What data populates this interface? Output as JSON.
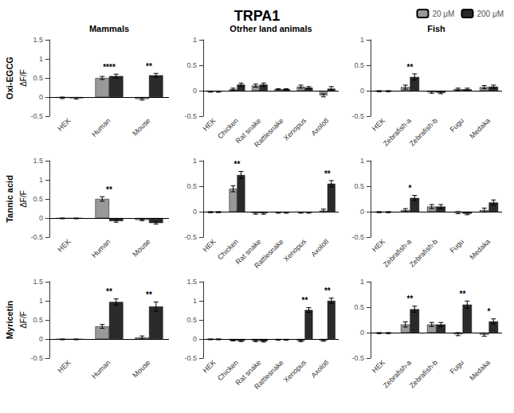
{
  "title": "TRPA1",
  "column_labels": [
    "Mammals",
    "Otrher land animals",
    "Fish"
  ],
  "row_labels": [
    "Oxi-EGCG",
    "Tannic acid",
    "Myricetin"
  ],
  "legend": "upper right",
  "chart_data": [
    {
      "type": "bar",
      "categories": [
        "HEK",
        "Human",
        "Mouse"
      ],
      "series": [
        {
          "name": "20 μM",
          "color": "#999999",
          "values": [
            -0.02,
            0.5,
            -0.05
          ],
          "errors": [
            0.02,
            0.04,
            0.03
          ]
        },
        {
          "name": "200 μM",
          "color": "#2a2a2a",
          "values": [
            -0.03,
            0.55,
            0.57
          ],
          "errors": [
            0.02,
            0.05,
            0.05
          ]
        }
      ],
      "annotations": [
        {
          "x": "Human",
          "text": "****"
        },
        {
          "x": "Mouse",
          "text": "**"
        }
      ],
      "ylabel": "ΔF/F",
      "ylim": [
        -0.5,
        1.5
      ],
      "yticks": [
        -0.5,
        0,
        0.5,
        1,
        1.5
      ],
      "grid": false
    },
    {
      "type": "bar",
      "categories": [
        "HEK",
        "Chicken",
        "Rat snake",
        "Rattlesnake",
        "Xenopus",
        "Axolotl"
      ],
      "series": [
        {
          "name": "20 μM",
          "color": "#999999",
          "values": [
            -0.02,
            0.03,
            0.1,
            0.03,
            0.08,
            -0.09
          ],
          "errors": [
            0.01,
            0.02,
            0.03,
            0.01,
            0.03,
            0.03
          ]
        },
        {
          "name": "200 μM",
          "color": "#2a2a2a",
          "values": [
            -0.02,
            0.12,
            0.12,
            0.03,
            0.06,
            0.04
          ],
          "errors": [
            0.01,
            0.03,
            0.03,
            0.01,
            0.02,
            0.04
          ]
        }
      ],
      "annotations": [],
      "ylim": [
        -0.5,
        1.0
      ],
      "yticks": [
        -0.5,
        0,
        0.5,
        1
      ],
      "grid": false
    },
    {
      "type": "bar",
      "categories": [
        "HEK",
        "Zebrafish-a",
        "Zebrafish-b",
        "Fugu",
        "Medaka"
      ],
      "series": [
        {
          "name": "20 μM",
          "color": "#999999",
          "values": [
            -0.01,
            0.07,
            -0.03,
            0.03,
            0.07
          ],
          "errors": [
            0.01,
            0.04,
            0.02,
            0.02,
            0.03
          ]
        },
        {
          "name": "200 μM",
          "color": "#2a2a2a",
          "values": [
            -0.01,
            0.27,
            -0.04,
            0.03,
            0.08
          ],
          "errors": [
            0.01,
            0.06,
            0.02,
            0.02,
            0.03
          ]
        }
      ],
      "annotations": [
        {
          "x": "Zebrafish-a",
          "text": "**"
        }
      ],
      "ylim": [
        -0.5,
        1.0
      ],
      "yticks": [
        -0.5,
        0,
        0.5,
        1
      ],
      "grid": false
    },
    {
      "type": "bar",
      "categories": [
        "HEK",
        "Human",
        "Mouse"
      ],
      "series": [
        {
          "name": "20 μM",
          "color": "#999999",
          "values": [
            -0.01,
            0.5,
            -0.05
          ],
          "errors": [
            0.01,
            0.06,
            0.02
          ]
        },
        {
          "name": "200 μM",
          "color": "#2a2a2a",
          "values": [
            -0.01,
            -0.08,
            -0.13
          ],
          "errors": [
            0.01,
            0.03,
            0.03
          ]
        }
      ],
      "annotations": [
        {
          "x": "Human",
          "text": "**"
        }
      ],
      "ylabel": "ΔF/F",
      "ylim": [
        -0.5,
        1.5
      ],
      "yticks": [
        -0.5,
        0,
        0.5,
        1,
        1.5
      ],
      "grid": false
    },
    {
      "type": "bar",
      "categories": [
        "HEK",
        "Chicken",
        "Rat snake",
        "Rattlesnake",
        "Xenopus",
        "Axolotl"
      ],
      "series": [
        {
          "name": "20 μM",
          "color": "#999999",
          "values": [
            -0.01,
            0.45,
            -0.03,
            -0.02,
            -0.02,
            0.02
          ],
          "errors": [
            0.01,
            0.06,
            0.02,
            0.01,
            0.01,
            0.03
          ]
        },
        {
          "name": "200 μM",
          "color": "#2a2a2a",
          "values": [
            -0.01,
            0.72,
            -0.03,
            -0.02,
            -0.02,
            0.55
          ],
          "errors": [
            0.01,
            0.07,
            0.02,
            0.01,
            0.01,
            0.06
          ]
        }
      ],
      "annotations": [
        {
          "x": "Chicken",
          "text": "**"
        },
        {
          "x": "Axolotl",
          "text": "**"
        }
      ],
      "ylim": [
        -0.5,
        1.0
      ],
      "yticks": [
        -0.5,
        0,
        0.5,
        1
      ],
      "grid": false
    },
    {
      "type": "bar",
      "categories": [
        "HEK",
        "Zebrafish-a",
        "Zebrafish-b",
        "Fugu",
        "Medaka"
      ],
      "series": [
        {
          "name": "20 μM",
          "color": "#999999",
          "values": [
            -0.01,
            0.03,
            0.1,
            -0.02,
            0.03
          ],
          "errors": [
            0.01,
            0.03,
            0.04,
            0.02,
            0.04
          ]
        },
        {
          "name": "200 μM",
          "color": "#2a2a2a",
          "values": [
            -0.01,
            0.27,
            0.1,
            -0.04,
            0.18
          ],
          "errors": [
            0.01,
            0.05,
            0.04,
            0.02,
            0.05
          ]
        }
      ],
      "annotations": [
        {
          "x": "Zebrafish-a",
          "text": "*"
        }
      ],
      "ylim": [
        -0.5,
        1.0
      ],
      "yticks": [
        -0.5,
        0,
        0.5,
        1
      ],
      "grid": false
    },
    {
      "type": "bar",
      "categories": [
        "HEK",
        "Human",
        "Mouse"
      ],
      "series": [
        {
          "name": "20 μM",
          "color": "#999999",
          "values": [
            -0.01,
            0.33,
            0.04
          ],
          "errors": [
            0.01,
            0.05,
            0.04
          ]
        },
        {
          "name": "200 μM",
          "color": "#2a2a2a",
          "values": [
            -0.01,
            0.97,
            0.85
          ],
          "errors": [
            0.01,
            0.08,
            0.12
          ]
        }
      ],
      "annotations": [
        {
          "x": "Human",
          "text": "**"
        },
        {
          "x": "Mouse",
          "text": "**"
        }
      ],
      "ylabel": "ΔF/F",
      "ylim": [
        -0.5,
        1.5
      ],
      "yticks": [
        -0.5,
        0,
        0.5,
        1,
        1.5
      ],
      "grid": false
    },
    {
      "type": "bar",
      "categories": [
        "HEK",
        "Chicken",
        "Rat snake",
        "Rattlesnake",
        "Xenopus",
        "Axolotl"
      ],
      "series": [
        {
          "name": "20 μM",
          "color": "#999999",
          "values": [
            -0.01,
            -0.04,
            -0.05,
            -0.02,
            -0.05,
            -0.04
          ],
          "errors": [
            0.01,
            0.01,
            0.02,
            0.01,
            0.02,
            0.02
          ]
        },
        {
          "name": "200 μM",
          "color": "#2a2a2a",
          "values": [
            -0.01,
            -0.05,
            -0.06,
            -0.02,
            0.76,
            1.0
          ],
          "errors": [
            0.01,
            0.02,
            0.02,
            0.01,
            0.06,
            0.07
          ]
        }
      ],
      "annotations": [
        {
          "x": "Xenopus",
          "text": "**"
        },
        {
          "x": "Axolotl",
          "text": "**"
        }
      ],
      "ylim": [
        -0.5,
        1.5
      ],
      "yticks": [
        -0.5,
        0,
        0.5,
        1,
        1.5
      ],
      "grid": false
    },
    {
      "type": "bar",
      "categories": [
        "HEK",
        "Zebrafish-a",
        "Zebrafish-b",
        "Fugu",
        "Medaka"
      ],
      "series": [
        {
          "name": "20 μM",
          "color": "#999999",
          "values": [
            -0.01,
            0.16,
            0.16,
            -0.03,
            -0.04
          ],
          "errors": [
            0.01,
            0.05,
            0.04,
            0.03,
            0.03
          ]
        },
        {
          "name": "200 μM",
          "color": "#2a2a2a",
          "values": [
            -0.01,
            0.46,
            0.16,
            0.55,
            0.22
          ],
          "errors": [
            0.01,
            0.06,
            0.04,
            0.07,
            0.05
          ]
        }
      ],
      "annotations": [
        {
          "x": "Zebrafish-a",
          "text": "**"
        },
        {
          "x": "Fugu",
          "text": "**"
        },
        {
          "x": "Medaka",
          "text": "*"
        }
      ],
      "ylim": [
        -0.5,
        1.0
      ],
      "yticks": [
        -0.5,
        0,
        0.5,
        1
      ],
      "grid": false
    }
  ]
}
